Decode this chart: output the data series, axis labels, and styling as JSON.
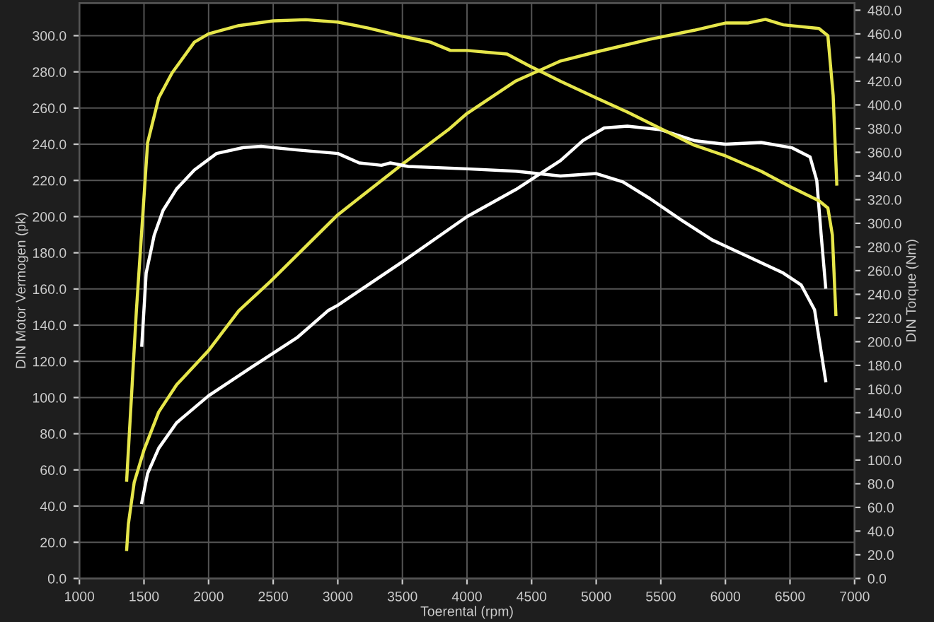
{
  "chart_data": {
    "type": "line",
    "xlabel": "Toerental (rpm)",
    "ylabel": "DIN Motor Vermogen (pk)",
    "y2label": "DIN Torque (Nm)",
    "xlim": [
      1000,
      7000
    ],
    "xticks": [
      1000,
      1500,
      2000,
      2500,
      3000,
      3500,
      4000,
      4500,
      5000,
      5500,
      6000,
      6500,
      7000
    ],
    "ylim": [
      0,
      318
    ],
    "yticks": [
      {
        "value": 0,
        "label": "0.0"
      },
      {
        "value": 20,
        "label": "20.0"
      },
      {
        "value": 40,
        "label": "40.0"
      },
      {
        "value": 60,
        "label": "60.0"
      },
      {
        "value": 80,
        "label": "80.0"
      },
      {
        "value": 100,
        "label": "100.0"
      },
      {
        "value": 120,
        "label": "120.0"
      },
      {
        "value": 140,
        "label": "140.0"
      },
      {
        "value": 160,
        "label": "160.0"
      },
      {
        "value": 180,
        "label": "180.0"
      },
      {
        "value": 200,
        "label": "200.0"
      },
      {
        "value": 220,
        "label": "220.0"
      },
      {
        "value": 240,
        "label": "240.0"
      },
      {
        "value": 260,
        "label": "260.0"
      },
      {
        "value": 280,
        "label": "280.0"
      },
      {
        "value": 300,
        "label": "300.0"
      }
    ],
    "y2lim": [
      0,
      486
    ],
    "y2ticks": [
      {
        "value": 0,
        "label": "0.0"
      },
      {
        "value": 20,
        "label": "20.0"
      },
      {
        "value": 40,
        "label": "40.0"
      },
      {
        "value": 60,
        "label": "60.0"
      },
      {
        "value": 80,
        "label": "80.0"
      },
      {
        "value": 100,
        "label": "100.0"
      },
      {
        "value": 120,
        "label": "120.0"
      },
      {
        "value": 140,
        "label": "140.0"
      },
      {
        "value": 160,
        "label": "160.0"
      },
      {
        "value": 180,
        "label": "180.0"
      },
      {
        "value": 200,
        "label": "200.0"
      },
      {
        "value": 220,
        "label": "220.0"
      },
      {
        "value": 240,
        "label": "240.0"
      },
      {
        "value": 260,
        "label": "260.0"
      },
      {
        "value": 280,
        "label": "280.0"
      },
      {
        "value": 300,
        "label": "300.0"
      },
      {
        "value": 320,
        "label": "320.0"
      },
      {
        "value": 340,
        "label": "340.0"
      },
      {
        "value": 360,
        "label": "360.0"
      },
      {
        "value": 380,
        "label": "380.0"
      },
      {
        "value": 400,
        "label": "400.0"
      },
      {
        "value": 420,
        "label": "420.0"
      },
      {
        "value": 440,
        "label": "440.0"
      },
      {
        "value": 460,
        "label": "460.0"
      },
      {
        "value": 480,
        "label": "480.0"
      }
    ],
    "grid": true,
    "marker": "none",
    "line_style": "solid",
    "series": [
      {
        "color": "#e6e64a",
        "x": [
          1366,
          1379,
          1424,
          1500,
          1614,
          1752,
          2000,
          2234,
          2476,
          3000,
          3500,
          3855,
          4000,
          4379,
          4724,
          5000,
          5414,
          5759,
          6000,
          6172,
          6310,
          6448,
          6724,
          6793,
          6834,
          6862
        ],
        "values": [
          16,
          30,
          53,
          71,
          92,
          107,
          126,
          148,
          164,
          201,
          229,
          248,
          257,
          275,
          286,
          291,
          298,
          303,
          307,
          307,
          309,
          306,
          304,
          300,
          267,
          218
        ]
      },
      {
        "color": "#ffffff",
        "x": [
          1483,
          1528,
          1614,
          1752,
          2000,
          2338,
          2683,
          2924,
          3000,
          3500,
          4000,
          4379,
          4724,
          4897,
          5062,
          5241,
          5500,
          5759,
          6000,
          6276,
          6517,
          6655,
          6707,
          6741,
          6776
        ],
        "values": [
          42,
          58,
          72,
          86,
          101,
          117,
          133,
          148,
          151,
          175,
          200,
          215,
          231,
          242,
          249,
          250,
          248,
          242,
          240,
          241,
          238,
          233,
          220,
          190,
          161
        ]
      },
      {
        "color": "#e6e64a",
        "axis": "y2",
        "x": [
          1366,
          1441,
          1528,
          1614,
          1717,
          1890,
          2000,
          2234,
          2500,
          2752,
          3000,
          3234,
          3500,
          3717,
          3872,
          4000,
          4310,
          4483,
          4724,
          5000,
          5241,
          5500,
          5759,
          6000,
          6276,
          6500,
          6724,
          6793,
          6828,
          6855
        ],
        "values": [
          83,
          226,
          368,
          406,
          427,
          453,
          460,
          467,
          471,
          472,
          470,
          465,
          458,
          453,
          446,
          446,
          443,
          433,
          420,
          406,
          394,
          380,
          366,
          357,
          344,
          331,
          319,
          313,
          290,
          223
        ]
      },
      {
        "color": "#ffffff",
        "axis": "y2",
        "x": [
          1483,
          1517,
          1579,
          1648,
          1752,
          1890,
          2062,
          2269,
          2407,
          2683,
          3000,
          3166,
          3338,
          3407,
          3545,
          4000,
          4379,
          4724,
          5000,
          5207,
          5414,
          5655,
          5897,
          6172,
          6448,
          6586,
          6690,
          6776
        ],
        "values": [
          197,
          258,
          290,
          311,
          329,
          345,
          359,
          364,
          365,
          362,
          359,
          351,
          349,
          351,
          348,
          346,
          344,
          340,
          342,
          335,
          321,
          303,
          286,
          272,
          258,
          248,
          227,
          167
        ]
      }
    ]
  }
}
